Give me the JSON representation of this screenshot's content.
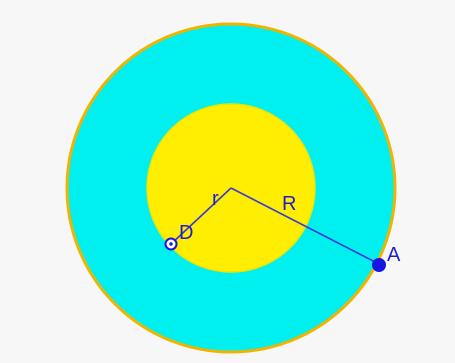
{
  "diagram": {
    "labels": {
      "r": "r",
      "R": "R",
      "D": "D",
      "A": "A"
    },
    "colors": {
      "background": "#f7f7f7",
      "outer_fill": "#00f0f0",
      "outer_stroke": "#f0b400",
      "inner_fill": "#ffee00",
      "line": "#3b3bd8",
      "text": "#1f1fcf",
      "point": "#1616e0"
    }
  }
}
